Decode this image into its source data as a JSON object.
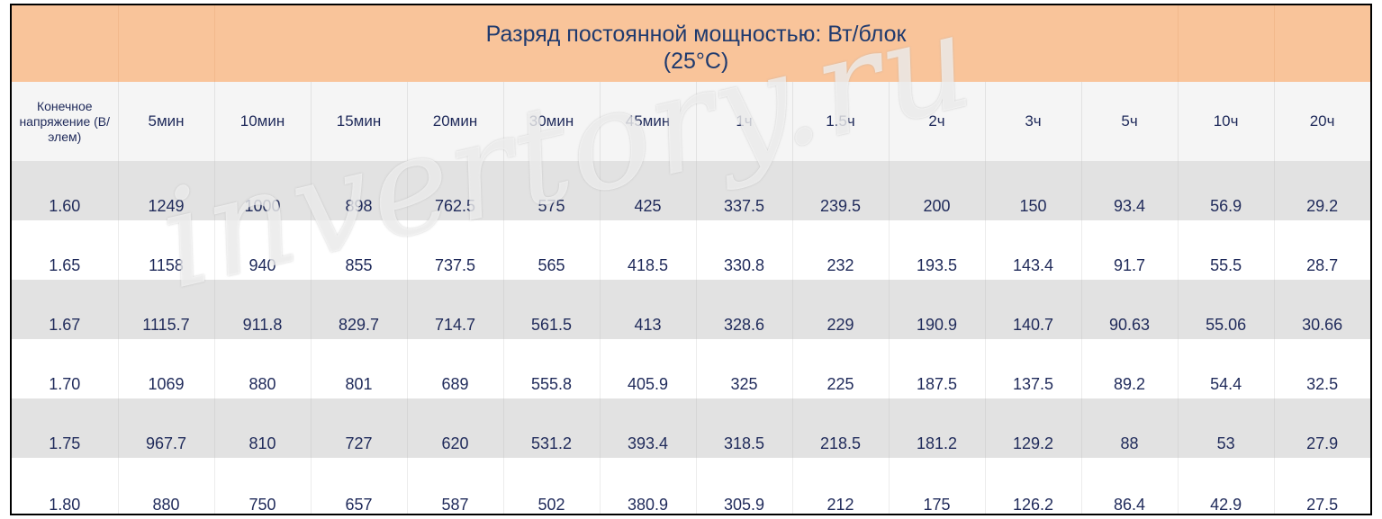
{
  "title": {
    "line1": "Разряд постоянной мощностью: Вт/блок",
    "line2": "(25°C)"
  },
  "header": {
    "first_col": "Конечное напряжение (В/элем)",
    "columns": [
      "5мин",
      "10мин",
      "15мин",
      "20мин",
      "30мин",
      "45мин",
      "1ч",
      "1.5ч",
      "2ч",
      "3ч",
      "5ч",
      "10ч",
      "20ч"
    ]
  },
  "rows": [
    {
      "voltage": "1.60",
      "values": [
        "1249",
        "1000",
        "898",
        "762.5",
        "575",
        "425",
        "337.5",
        "239.5",
        "200",
        "150",
        "93.4",
        "56.9",
        "29.2"
      ]
    },
    {
      "voltage": "1.65",
      "values": [
        "1158",
        "940",
        "855",
        "737.5",
        "565",
        "418.5",
        "330.8",
        "232",
        "193.5",
        "143.4",
        "91.7",
        "55.5",
        "28.7"
      ]
    },
    {
      "voltage": "1.67",
      "values": [
        "1115.7",
        "911.8",
        "829.7",
        "714.7",
        "561.5",
        "413",
        "328.6",
        "229",
        "190.9",
        "140.7",
        "90.63",
        "55.06",
        "30.66"
      ]
    },
    {
      "voltage": "1.70",
      "values": [
        "1069",
        "880",
        "801",
        "689",
        "555.8",
        "405.9",
        "325",
        "225",
        "187.5",
        "137.5",
        "89.2",
        "54.4",
        "32.5"
      ]
    },
    {
      "voltage": "1.75",
      "values": [
        "967.7",
        "810",
        "727",
        "620",
        "531.2",
        "393.4",
        "318.5",
        "218.5",
        "181.2",
        "129.2",
        "88",
        "53",
        "27.9"
      ]
    },
    {
      "voltage": "1.80",
      "values": [
        "880",
        "750",
        "657",
        "587",
        "502",
        "380.9",
        "305.9",
        "212",
        "175",
        "126.2",
        "86.4",
        "42.9",
        "27.5"
      ]
    }
  ],
  "watermark": "invertory.ru",
  "colors": {
    "title_bg": "#f9c49a",
    "header_bg": "#f5f5f5",
    "stripe_bg": "#e2e2e2",
    "text": "#1f2a5a"
  }
}
